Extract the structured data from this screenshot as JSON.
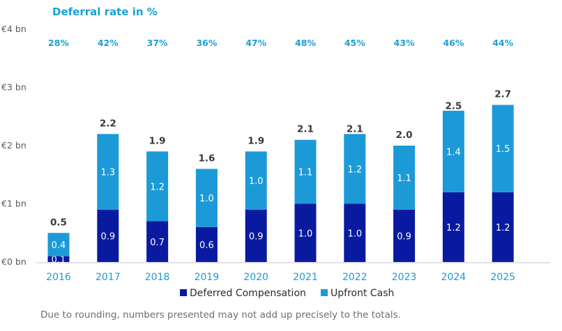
{
  "chart_data": {
    "type": "bar",
    "stacked": true,
    "title": "Deferral rate in %",
    "categories": [
      "2016",
      "2017",
      "2018",
      "2019",
      "2020",
      "2021",
      "2022",
      "2023",
      "2024",
      "2025"
    ],
    "series": [
      {
        "name": "Deferred Compensation",
        "color": "#0a1aa0",
        "values": [
          0.1,
          0.9,
          0.7,
          0.6,
          0.9,
          1.0,
          1.0,
          0.9,
          1.2,
          1.2
        ],
        "labels": [
          "0.1",
          "0.9",
          "0.7",
          "0.6",
          "0.9",
          "1.0",
          "1.0",
          "0.9",
          "1.2",
          "1.2"
        ]
      },
      {
        "name": "Upfront Cash",
        "color": "#1c9ad8",
        "values": [
          0.4,
          1.3,
          1.2,
          1.0,
          1.0,
          1.1,
          1.2,
          1.1,
          1.4,
          1.5
        ],
        "labels": [
          "0.4",
          "1.3",
          "1.2",
          "1.0",
          "1.0",
          "1.1",
          "1.2",
          "1.1",
          "1.4",
          "1.5"
        ]
      }
    ],
    "totals": [
      0.5,
      2.2,
      1.9,
      1.6,
      1.9,
      2.1,
      2.1,
      2.0,
      2.5,
      2.7
    ],
    "total_labels": [
      "0.5",
      "2.2",
      "1.9",
      "1.6",
      "1.9",
      "2.1",
      "2.1",
      "2.0",
      "2.5",
      "2.7"
    ],
    "deferral_rates": [
      "28%",
      "42%",
      "37%",
      "36%",
      "47%",
      "48%",
      "45%",
      "43%",
      "46%",
      "44%"
    ],
    "yaxis": {
      "ticks": [
        0,
        1,
        2,
        3,
        4
      ],
      "tick_labels": [
        "€0 bn",
        "€1 bn",
        "€2 bn",
        "€3 bn",
        "€4 bn"
      ],
      "ylim": [
        0,
        4
      ]
    },
    "xlabel": "",
    "ylabel": "",
    "grid": false,
    "legend_position": "bottom",
    "note": "Due to rounding, numbers presented may not add up precisely to the totals."
  }
}
